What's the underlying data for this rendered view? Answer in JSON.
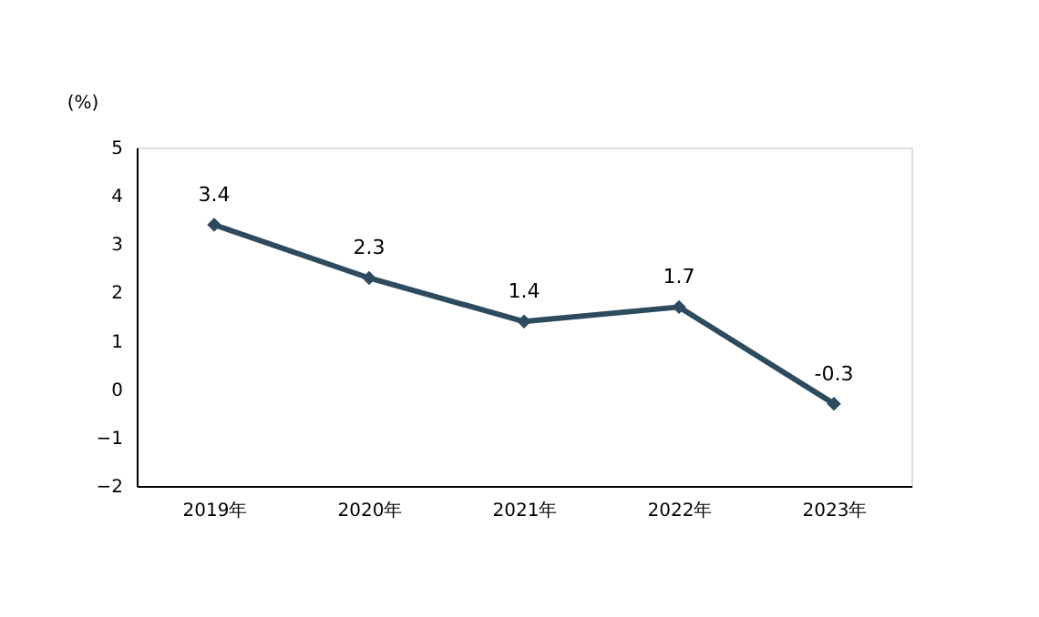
{
  "chart_data": {
    "type": "line",
    "ylabel": "(%)",
    "categories": [
      "2019年",
      "2020年",
      "2021年",
      "2022年",
      "2023年"
    ],
    "series": [
      {
        "color": "#2e4a5f",
        "values": [
          3.4,
          2.3,
          1.4,
          1.7,
          -0.3
        ]
      }
    ],
    "ylim": [
      -2,
      5
    ],
    "yticks": [
      -2,
      -1,
      0,
      1,
      2,
      3,
      4,
      5
    ],
    "grid": false,
    "marker": "diamond",
    "line_style": "solid",
    "data_labels": true
  }
}
